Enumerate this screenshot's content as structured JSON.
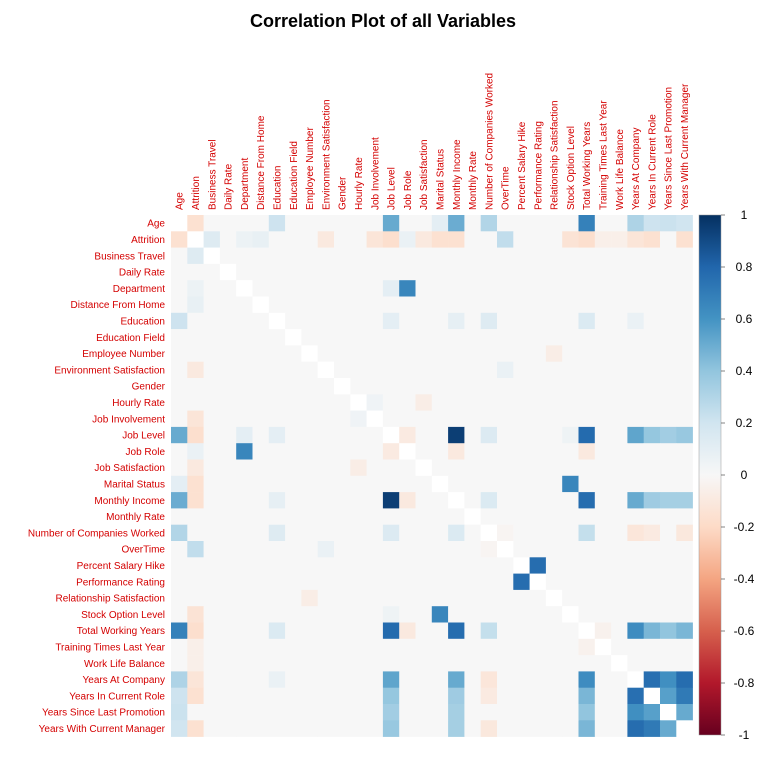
{
  "chart_data": {
    "type": "heatmap",
    "title": "Correlation Plot of all Variables",
    "variables": [
      "Age",
      "Attrition",
      "Business Travel",
      "Daily Rate",
      "Department",
      "Distance From Home",
      "Education",
      "Education Field",
      "Employee Number",
      "Environment Satisfaction",
      "Gender",
      "Hourly Rate",
      "Job Involvement",
      "Job Level",
      "Job Role",
      "Job Satisfaction",
      "Marital Status",
      "Monthly Income",
      "Monthly Rate",
      "Number of Companies Worked",
      "OverTime",
      "Percent Salary Hike",
      "Performance Rating",
      "Relationship Satisfaction",
      "Stock Option Level",
      "Total Working Years",
      "Training Times Last Year",
      "Work Life Balance",
      "Years At Company",
      "Years In Current Role",
      "Years Since Last Promotion",
      "Years With Current Manager"
    ],
    "correlations": [
      {
        "a": "Age",
        "b": "Attrition",
        "r": -0.16
      },
      {
        "a": "Age",
        "b": "Education",
        "r": 0.21
      },
      {
        "a": "Age",
        "b": "Job Level",
        "r": 0.51
      },
      {
        "a": "Age",
        "b": "Monthly Income",
        "r": 0.5
      },
      {
        "a": "Age",
        "b": "Number of Companies Worked",
        "r": 0.3
      },
      {
        "a": "Age",
        "b": "Total Working Years",
        "r": 0.68
      },
      {
        "a": "Age",
        "b": "Years At Company",
        "r": 0.31
      },
      {
        "a": "Age",
        "b": "Years In Current Role",
        "r": 0.21
      },
      {
        "a": "Age",
        "b": "Years Since Last Promotion",
        "r": 0.22
      },
      {
        "a": "Age",
        "b": "Years With Current Manager",
        "r": 0.2
      },
      {
        "a": "Age",
        "b": "Marital Status",
        "r": 0.1
      },
      {
        "a": "Age",
        "b": "Distance From Home",
        "r": 0.0
      },
      {
        "a": "Attrition",
        "b": "Business Travel",
        "r": 0.13
      },
      {
        "a": "Attrition",
        "b": "Distance From Home",
        "r": 0.08
      },
      {
        "a": "Attrition",
        "b": "Environment Satisfaction",
        "r": -0.1
      },
      {
        "a": "Attrition",
        "b": "Job Involvement",
        "r": -0.13
      },
      {
        "a": "Attrition",
        "b": "Job Level",
        "r": -0.17
      },
      {
        "a": "Attrition",
        "b": "Job Satisfaction",
        "r": -0.1
      },
      {
        "a": "Attrition",
        "b": "Marital Status",
        "r": -0.16
      },
      {
        "a": "Attrition",
        "b": "Monthly Income",
        "r": -0.16
      },
      {
        "a": "Attrition",
        "b": "OverTime",
        "r": 0.25
      },
      {
        "a": "Attrition",
        "b": "Stock Option Level",
        "r": -0.14
      },
      {
        "a": "Attrition",
        "b": "Total Working Years",
        "r": -0.17
      },
      {
        "a": "Attrition",
        "b": "Years At Company",
        "r": -0.13
      },
      {
        "a": "Attrition",
        "b": "Years In Current Role",
        "r": -0.16
      },
      {
        "a": "Attrition",
        "b": "Years With Current Manager",
        "r": -0.16
      },
      {
        "a": "Attrition",
        "b": "Work Life Balance",
        "r": -0.06
      },
      {
        "a": "Attrition",
        "b": "Training Times Last Year",
        "r": -0.06
      },
      {
        "a": "Attrition",
        "b": "Job Role",
        "r": 0.07
      },
      {
        "a": "Attrition",
        "b": "Department",
        "r": 0.06
      },
      {
        "a": "Department",
        "b": "Job Role",
        "r": 0.66
      },
      {
        "a": "Department",
        "b": "Job Level",
        "r": 0.1
      },
      {
        "a": "Education",
        "b": "Total Working Years",
        "r": 0.15
      },
      {
        "a": "Education",
        "b": "Job Level",
        "r": 0.1
      },
      {
        "a": "Education",
        "b": "Monthly Income",
        "r": 0.09
      },
      {
        "a": "Education",
        "b": "Number of Companies Worked",
        "r": 0.13
      },
      {
        "a": "Education",
        "b": "Years At Company",
        "r": 0.07
      },
      {
        "a": "Job Level",
        "b": "Monthly Income",
        "r": 0.95
      },
      {
        "a": "Job Level",
        "b": "Total Working Years",
        "r": 0.78
      },
      {
        "a": "Job Level",
        "b": "Years At Company",
        "r": 0.53
      },
      {
        "a": "Job Level",
        "b": "Years In Current Role",
        "r": 0.39
      },
      {
        "a": "Job Level",
        "b": "Years Since Last Promotion",
        "r": 0.35
      },
      {
        "a": "Job Level",
        "b": "Years With Current Manager",
        "r": 0.38
      },
      {
        "a": "Job Level",
        "b": "Number of Companies Worked",
        "r": 0.14
      },
      {
        "a": "Job Level",
        "b": "Stock Option Level",
        "r": 0.05
      },
      {
        "a": "Job Level",
        "b": "Job Role",
        "r": -0.09
      },
      {
        "a": "Job Role",
        "b": "Total Working Years",
        "r": -0.1
      },
      {
        "a": "Job Role",
        "b": "Monthly Income",
        "r": -0.1
      },
      {
        "a": "Marital Status",
        "b": "Stock Option Level",
        "r": 0.66
      },
      {
        "a": "Monthly Income",
        "b": "Total Working Years",
        "r": 0.77
      },
      {
        "a": "Monthly Income",
        "b": "Years At Company",
        "r": 0.51
      },
      {
        "a": "Monthly Income",
        "b": "Years In Current Role",
        "r": 0.36
      },
      {
        "a": "Monthly Income",
        "b": "Years Since Last Promotion",
        "r": 0.34
      },
      {
        "a": "Monthly Income",
        "b": "Years With Current Manager",
        "r": 0.34
      },
      {
        "a": "Monthly Income",
        "b": "Number of Companies Worked",
        "r": 0.15
      },
      {
        "a": "Number of Companies Worked",
        "b": "Total Working Years",
        "r": 0.24
      },
      {
        "a": "Number of Companies Worked",
        "b": "Years At Company",
        "r": -0.12
      },
      {
        "a": "Number of Companies Worked",
        "b": "Years In Current Role",
        "r": -0.09
      },
      {
        "a": "Number of Companies Worked",
        "b": "Years With Current Manager",
        "r": -0.11
      },
      {
        "a": "Percent Salary Hike",
        "b": "Performance Rating",
        "r": 0.77
      },
      {
        "a": "Total Working Years",
        "b": "Years At Company",
        "r": 0.63
      },
      {
        "a": "Total Working Years",
        "b": "Years In Current Role",
        "r": 0.46
      },
      {
        "a": "Total Working Years",
        "b": "Years Since Last Promotion",
        "r": 0.4
      },
      {
        "a": "Total Working Years",
        "b": "Years With Current Manager",
        "r": 0.46
      },
      {
        "a": "Years At Company",
        "b": "Years In Current Role",
        "r": 0.76
      },
      {
        "a": "Years At Company",
        "b": "Years Since Last Promotion",
        "r": 0.62
      },
      {
        "a": "Years At Company",
        "b": "Years With Current Manager",
        "r": 0.77
      },
      {
        "a": "Years In Current Role",
        "b": "Years Since Last Promotion",
        "r": 0.55
      },
      {
        "a": "Years In Current Role",
        "b": "Years With Current Manager",
        "r": 0.71
      },
      {
        "a": "Years Since Last Promotion",
        "b": "Years With Current Manager",
        "r": 0.51
      },
      {
        "a": "Training Times Last Year",
        "b": "Total Working Years",
        "r": -0.04
      },
      {
        "a": "Hourly Rate",
        "b": "Job Satisfaction",
        "r": -0.07
      },
      {
        "a": "Hourly Rate",
        "b": "Job Involvement",
        "r": 0.04
      },
      {
        "a": "OverTime",
        "b": "Environment Satisfaction",
        "r": 0.07
      },
      {
        "a": "OverTime",
        "b": "Number of Companies Worked",
        "r": -0.02
      },
      {
        "a": "Relationship Satisfaction",
        "b": "Employee Number",
        "r": -0.07
      },
      {
        "a": "Gender",
        "b": "Hourly Rate",
        "r": 0.0
      }
    ],
    "colorbar": {
      "ticks": [
        "1",
        "0.8",
        "0.6",
        "0.4",
        "0.2",
        "0",
        "-0.2",
        "-0.4",
        "-0.6",
        "-0.8",
        "-1"
      ],
      "range": [
        -1,
        1
      ]
    },
    "colors": {
      "negative_extreme": "#67001f",
      "positive_extreme": "#053061",
      "neutral": "#f7f7f7",
      "label_color": "#d40000"
    }
  }
}
